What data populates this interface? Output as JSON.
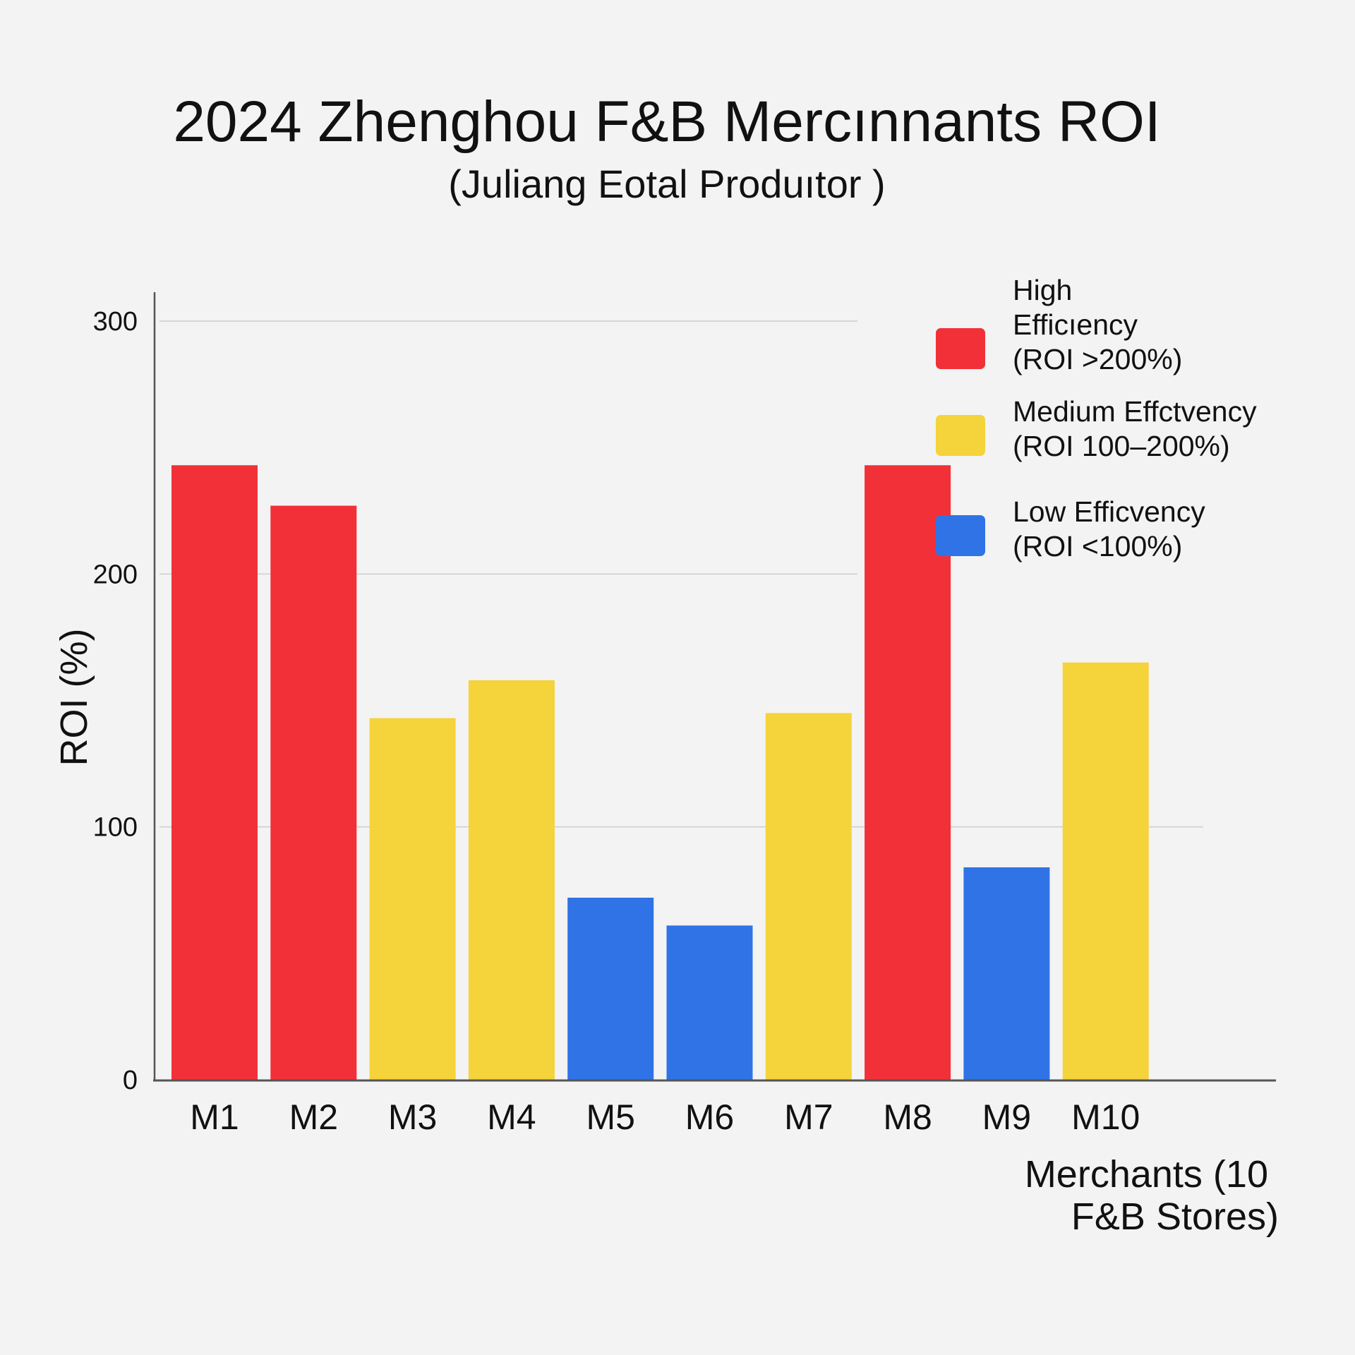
{
  "chart_data": {
    "type": "bar",
    "title": "2024 Zhenghou F&B Mercınnants ROI",
    "subtitle": "(Juliang Εotal Produıtor )",
    "ylabel": "ROI (%)",
    "xlabel_lines": [
      "Merchants (10",
      "F&B Stores)"
    ],
    "ylim": [
      0,
      300
    ],
    "yticks": [
      0,
      100,
      200,
      300
    ],
    "grid": true,
    "legend_position": "top-right",
    "categories": [
      "M1",
      "M2",
      "M3",
      "M4",
      "M5",
      "M6",
      "M7",
      "M8",
      "M9",
      "M10"
    ],
    "values": [
      243,
      227,
      143,
      158,
      72,
      61,
      145,
      243,
      84,
      165
    ],
    "tiers": [
      "high",
      "high",
      "medium",
      "medium",
      "low",
      "low",
      "medium",
      "high",
      "low",
      "medium"
    ],
    "legend": [
      {
        "key": "high",
        "lines": [
          "High",
          "Efficıency",
          "(ROI >200%)"
        ],
        "color": "#f23038"
      },
      {
        "key": "medium",
        "lines": [
          "Medium Effctvency",
          "(ROI 100–200%)"
        ],
        "color": "#f5d33a"
      },
      {
        "key": "low",
        "lines": [
          "Low Efficvency",
          "(ROI <100%)"
        ],
        "color": "#2f73e6"
      }
    ]
  }
}
